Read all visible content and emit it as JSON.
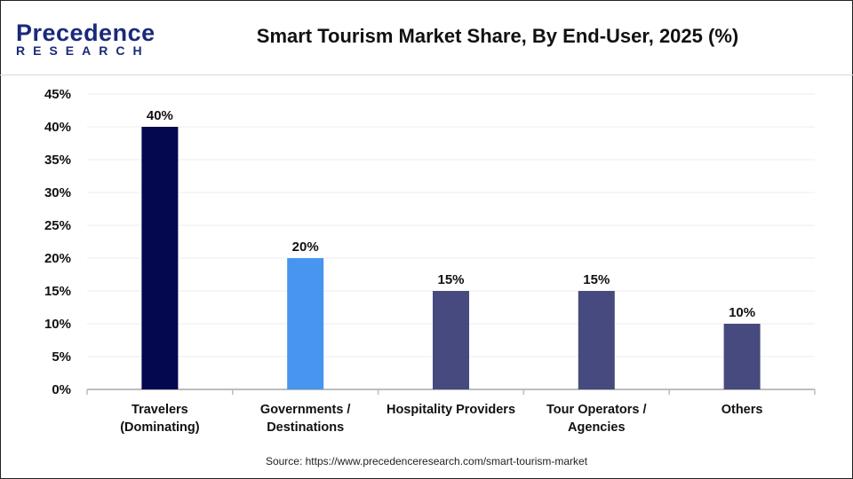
{
  "header": {
    "logo_top": "Precedence",
    "logo_bottom": "RESEARCH",
    "title": "Smart Tourism Market Share, By End-User, 2025 (%)"
  },
  "source": "Source: https://www.precedenceresearch.com/smart-tourism-market",
  "chart_data": {
    "type": "bar",
    "title": "Smart Tourism Market Share, By End-User, 2025 (%)",
    "categories": [
      [
        "Travelers",
        "(Dominating)"
      ],
      [
        "Governments /",
        "Destinations"
      ],
      [
        "Hospitality Providers"
      ],
      [
        "Tour Operators /",
        "Agencies"
      ],
      [
        "Others"
      ]
    ],
    "values": [
      40,
      20,
      15,
      15,
      10
    ],
    "data_labels": [
      "40%",
      "20%",
      "15%",
      "15%",
      "10%"
    ],
    "colors": [
      "#03084f",
      "#4795ef",
      "#464a7e",
      "#464a7e",
      "#464a7e"
    ],
    "ylim": [
      0,
      45
    ],
    "yticks": [
      "0%",
      "5%",
      "10%",
      "15%",
      "20%",
      "25%",
      "30%",
      "35%",
      "40%",
      "45%"
    ],
    "grid": true
  }
}
